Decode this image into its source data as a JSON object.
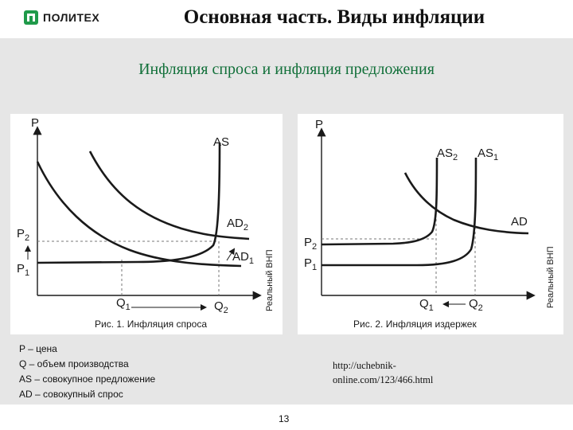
{
  "header": {
    "logo_text": "ПОЛИТЕХ",
    "title": "Основная часть. Виды инфляции"
  },
  "subtitle": "Инфляция спроса и инфляция предложения",
  "figure1": {
    "caption": "Рис. 1. Инфляция спроса",
    "y_axis": "P",
    "x_axis": "Реальный ВНП",
    "labels": {
      "as": "AS",
      "ad2": "AD",
      "ad2_sub": "2",
      "ad1": "AD",
      "ad1_sub": "1",
      "p2": "P",
      "p2_sub": "2",
      "p1": "P",
      "p1_sub": "1",
      "q1": "Q",
      "q1_sub": "1",
      "q2": "Q",
      "q2_sub": "2"
    }
  },
  "figure2": {
    "caption": "Рис. 2. Инфляция издержек",
    "y_axis": "P",
    "x_axis": "Реальный ВНП",
    "labels": {
      "as2": "AS",
      "as2_sub": "2",
      "as1": "AS",
      "as1_sub": "1",
      "ad": "AD",
      "p2": "P",
      "p2_sub": "2",
      "p1": "P",
      "p1_sub": "1",
      "q1": "Q",
      "q1_sub": "1",
      "q2": "Q",
      "q2_sub": "2"
    }
  },
  "legend": [
    "P – цена",
    "Q – объем производства",
    "AS – совокупное предложение",
    "AD – совокупный спрос"
  ],
  "source_lines": [
    "http://uchebnik-",
    "online.com/123/466.html"
  ],
  "page_number": "13",
  "colors": {
    "accent": "#12703a",
    "background": "#e6e6e6"
  }
}
